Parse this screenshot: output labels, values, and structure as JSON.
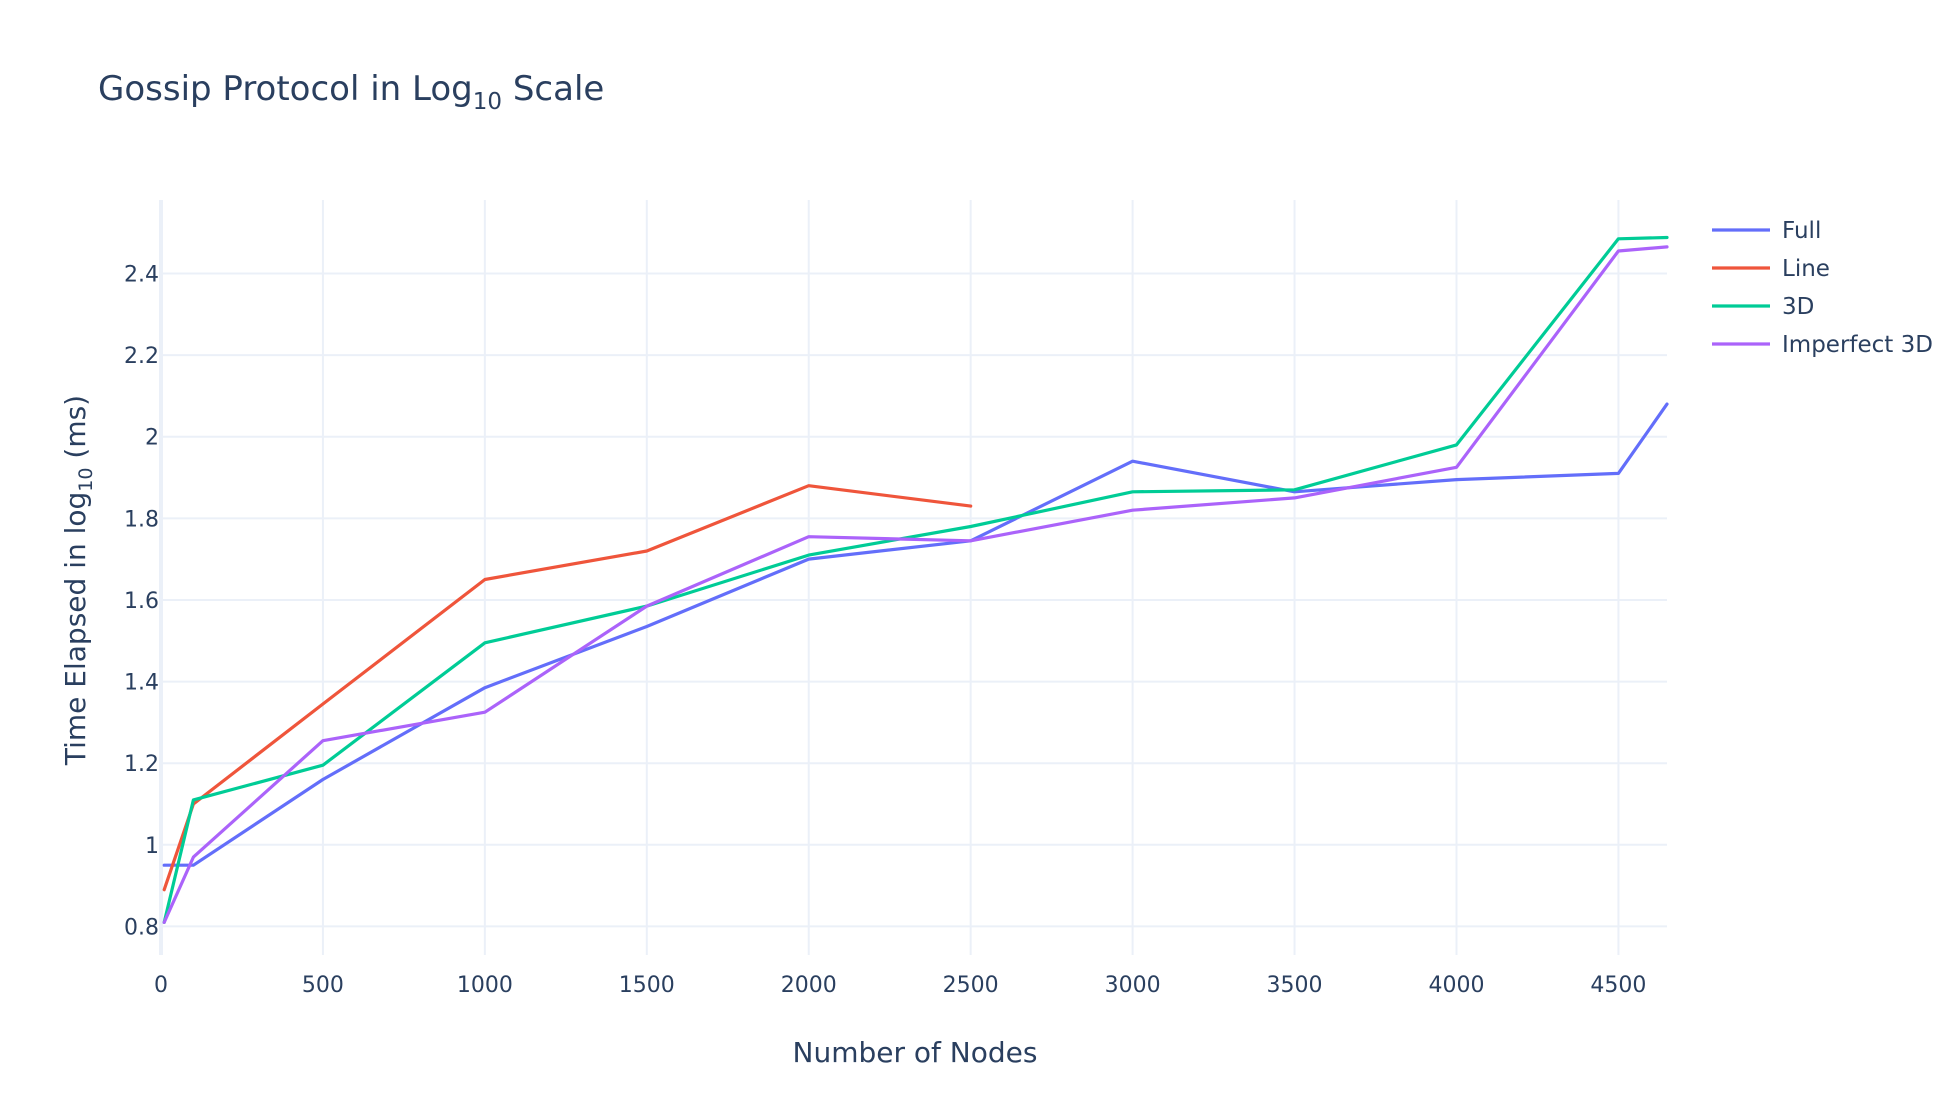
{
  "chart_data": {
    "type": "line",
    "title": {
      "main": "Gossip Protocol in Log",
      "sub": "10",
      "tail": " Scale"
    },
    "xlabel": "Number of Nodes",
    "ylabel": {
      "main": "Time Elapsed in log",
      "sub": "10",
      "tail": " (ms)"
    },
    "xlim": [
      0,
      4650
    ],
    "ylim": [
      0.73,
      2.58
    ],
    "xticks": [
      0,
      500,
      1000,
      1500,
      2000,
      2500,
      3000,
      3500,
      4000,
      4500
    ],
    "xtick_labels": [
      "0",
      "500",
      "1000",
      "1500",
      "2000",
      "2500",
      "3000",
      "3500",
      "4000",
      "4500"
    ],
    "yticks": [
      0.8,
      1.0,
      1.2,
      1.4,
      1.6,
      1.8,
      2.0,
      2.2,
      2.4
    ],
    "ytick_labels": [
      "0.8",
      "1",
      "1.2",
      "1.4",
      "1.6",
      "1.8",
      "2",
      "2.2",
      "2.4"
    ],
    "grid": true,
    "legend_position": "top-right",
    "series": [
      {
        "name": "Full",
        "color": "#636efa",
        "x": [
          10,
          100,
          500,
          1000,
          1500,
          2000,
          2500,
          3000,
          3500,
          4000,
          4500,
          4650
        ],
        "y": [
          0.95,
          0.95,
          1.16,
          1.385,
          1.535,
          1.7,
          1.745,
          1.94,
          1.865,
          1.895,
          1.91,
          2.08
        ]
      },
      {
        "name": "Line",
        "color": "#ef553b",
        "x": [
          10,
          100,
          500,
          1000,
          1500,
          2000,
          2500
        ],
        "y": [
          0.89,
          1.1,
          1.345,
          1.65,
          1.72,
          1.88,
          1.83
        ]
      },
      {
        "name": "3D",
        "color": "#00cc96",
        "x": [
          10,
          100,
          500,
          1000,
          1500,
          2000,
          2500,
          3000,
          3500,
          4000,
          4500,
          4650
        ],
        "y": [
          0.81,
          1.11,
          1.195,
          1.495,
          1.585,
          1.71,
          1.78,
          1.865,
          1.87,
          1.98,
          2.485,
          2.488
        ]
      },
      {
        "name": "Imperfect 3D",
        "color": "#ab63fa",
        "x": [
          10,
          100,
          500,
          1000,
          1500,
          2000,
          2500,
          3000,
          3500,
          4000,
          4500,
          4650
        ],
        "y": [
          0.81,
          0.97,
          1.255,
          1.325,
          1.585,
          1.755,
          1.745,
          1.82,
          1.85,
          1.925,
          2.455,
          2.465
        ]
      }
    ]
  }
}
